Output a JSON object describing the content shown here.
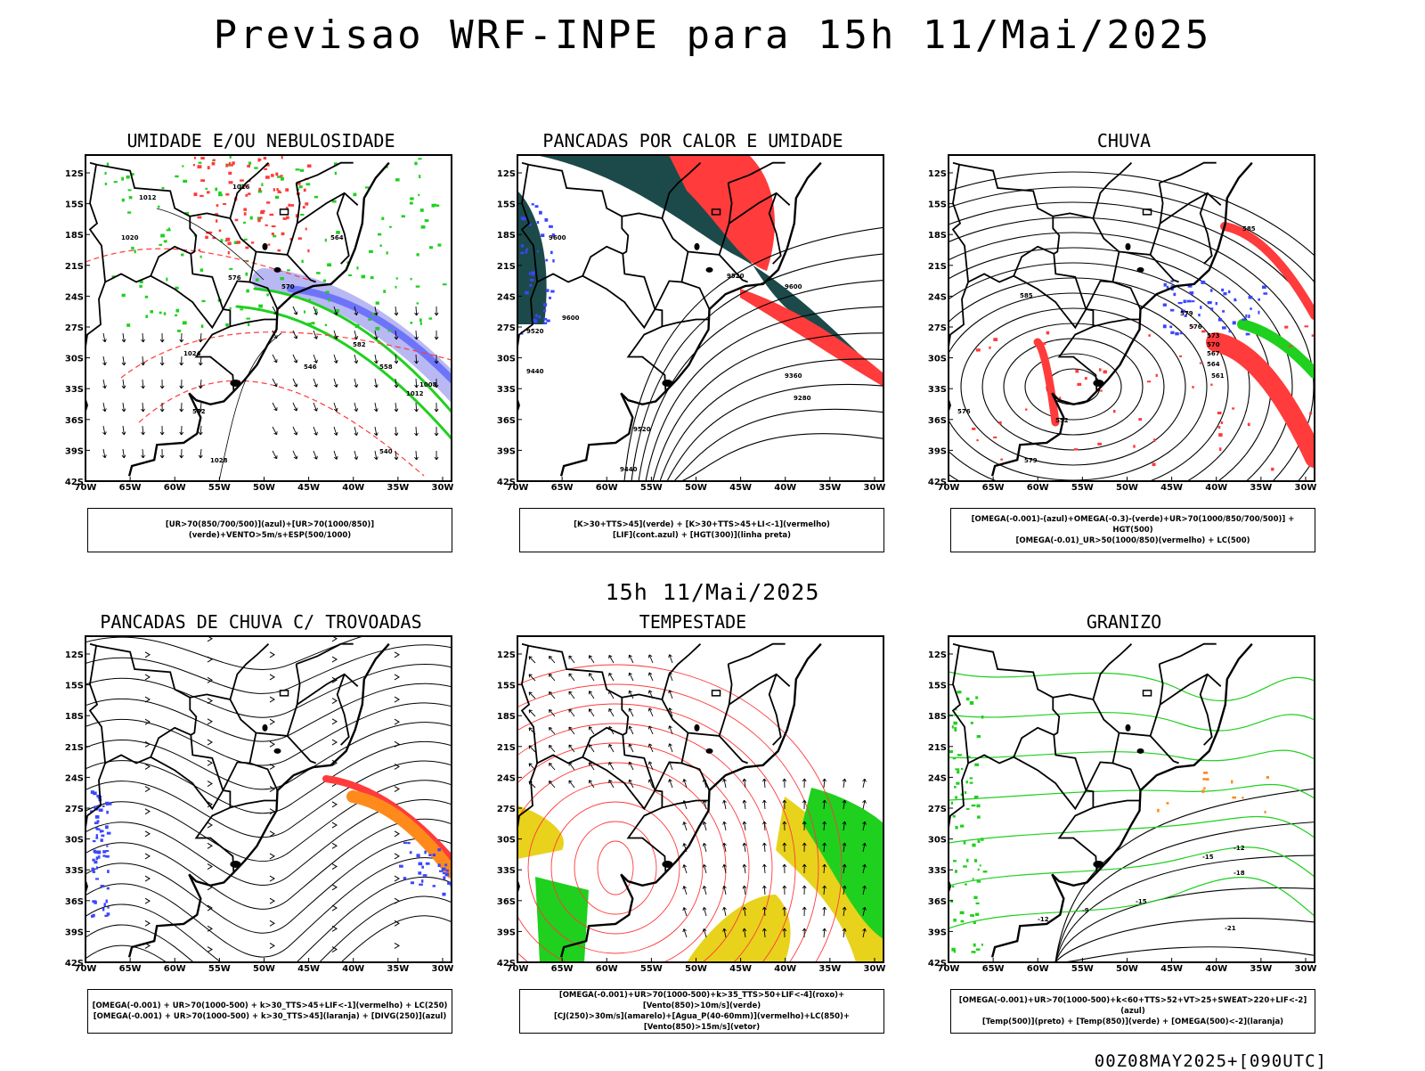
{
  "title": "Previsao WRF-INPE  para 15h 11/Mai/2025",
  "mid_title": "15h 11/Mai/2025",
  "footer": "00Z08MAY2025+[090UTC]",
  "lat_ticks": [
    "12S",
    "15S",
    "18S",
    "21S",
    "24S",
    "27S",
    "30S",
    "33S",
    "36S",
    "39S",
    "42S"
  ],
  "lon_ticks": [
    "70W",
    "65W",
    "60W",
    "55W",
    "50W",
    "45W",
    "40W",
    "35W",
    "30W"
  ],
  "colors": {
    "blue": "#3b46ff",
    "green": "#1fd01f",
    "red": "#ff3b3b",
    "darkteal": "#1c4a4a",
    "orange": "#ff8a1c",
    "yellow": "#e8d21c",
    "lavender": "#9a9aee"
  },
  "panels": [
    {
      "title": "UMIDADE E/OU NEBULOSIDADE",
      "legend": [
        "[UR>70(850/700/500)](azul)+[UR>70(1000/850)](verde)+VENTO>5m/s+ESP(500/1000)"
      ],
      "contour_labels": [
        "1012",
        "1016",
        "1020",
        "1024",
        "1028",
        "564",
        "570",
        "576",
        "582",
        "558",
        "552",
        "546",
        "540",
        "1008",
        "1012"
      ]
    },
    {
      "title": "PANCADAS POR CALOR E UMIDADE",
      "legend": [
        "[K>30+TTS>45](verde) + [K>30+TTS>45+LI<-1](vermelho)",
        "[LIF](cont.azul) + [HGT(300)](linha preta)"
      ],
      "contour_labels": [
        "9600",
        "9520",
        "9600",
        "9440",
        "9520",
        "9360",
        "9280",
        "9600",
        "9520",
        "9440"
      ]
    },
    {
      "title": "CHUVA",
      "legend": [
        "[OMEGA(-0.001)-(azul)+OMEGA(-0.3)-(verde)+UR>70(1000/850/700/500)] + HGT(500)",
        "[OMEGA(-0.01)_UR>50(1000/850)(vermelho) + LC(500)"
      ],
      "contour_labels": [
        "585",
        "579",
        "576",
        "573",
        "570",
        "567",
        "564",
        "561",
        "552",
        "579",
        "585",
        "576"
      ]
    },
    {
      "title": "PANCADAS DE CHUVA C/ TROVOADAS",
      "legend": [
        "[OMEGA(-0.001) + UR>70(1000-500) + k>30_TTS>45+LIF<-1](vermelho) + LC(250)",
        "[OMEGA(-0.001) + UR>70(1000-500) + k>30_TTS>45](laranja) + [DIVG(250)](azul)"
      ],
      "contour_labels": []
    },
    {
      "title": "TEMPESTADE",
      "legend": [
        "[OMEGA(-0.001)+UR>70(1000-500)+k>35_TTS>50+LIF<-4](roxo)+[Vento(850)>10m/s](verde)",
        "[CJ(250)>30m/s](amarelo)+[Agua_P(40-60mm)](vermelho)+LC(850)+[Vento(850)>15m/s](vetor)"
      ],
      "contour_labels": []
    },
    {
      "title": "GRANIZO",
      "legend": [
        "[OMEGA(-0.001)+UR>70(1000-500)+k<60+TTS>52+VT>25+SWEAT>220+LIF<-2](azul)",
        "[Temp(500)](preto) + [Temp(850)](verde) + [OMEGA(500)<-2](laranja)"
      ],
      "contour_labels": [
        "-12",
        "-15",
        "-18",
        "-21",
        "-12",
        "-9",
        "-15"
      ]
    }
  ]
}
